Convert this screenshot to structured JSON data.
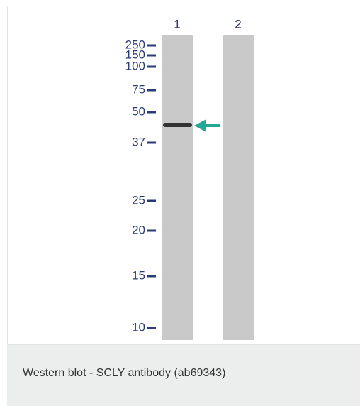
{
  "figure": {
    "lanes": [
      "1",
      "2"
    ],
    "markers": [
      "250",
      "150",
      "100",
      "75",
      "50",
      "37",
      "25",
      "20",
      "15",
      "10"
    ]
  },
  "caption": "Western blot - SCLY antibody (ab69343)"
}
